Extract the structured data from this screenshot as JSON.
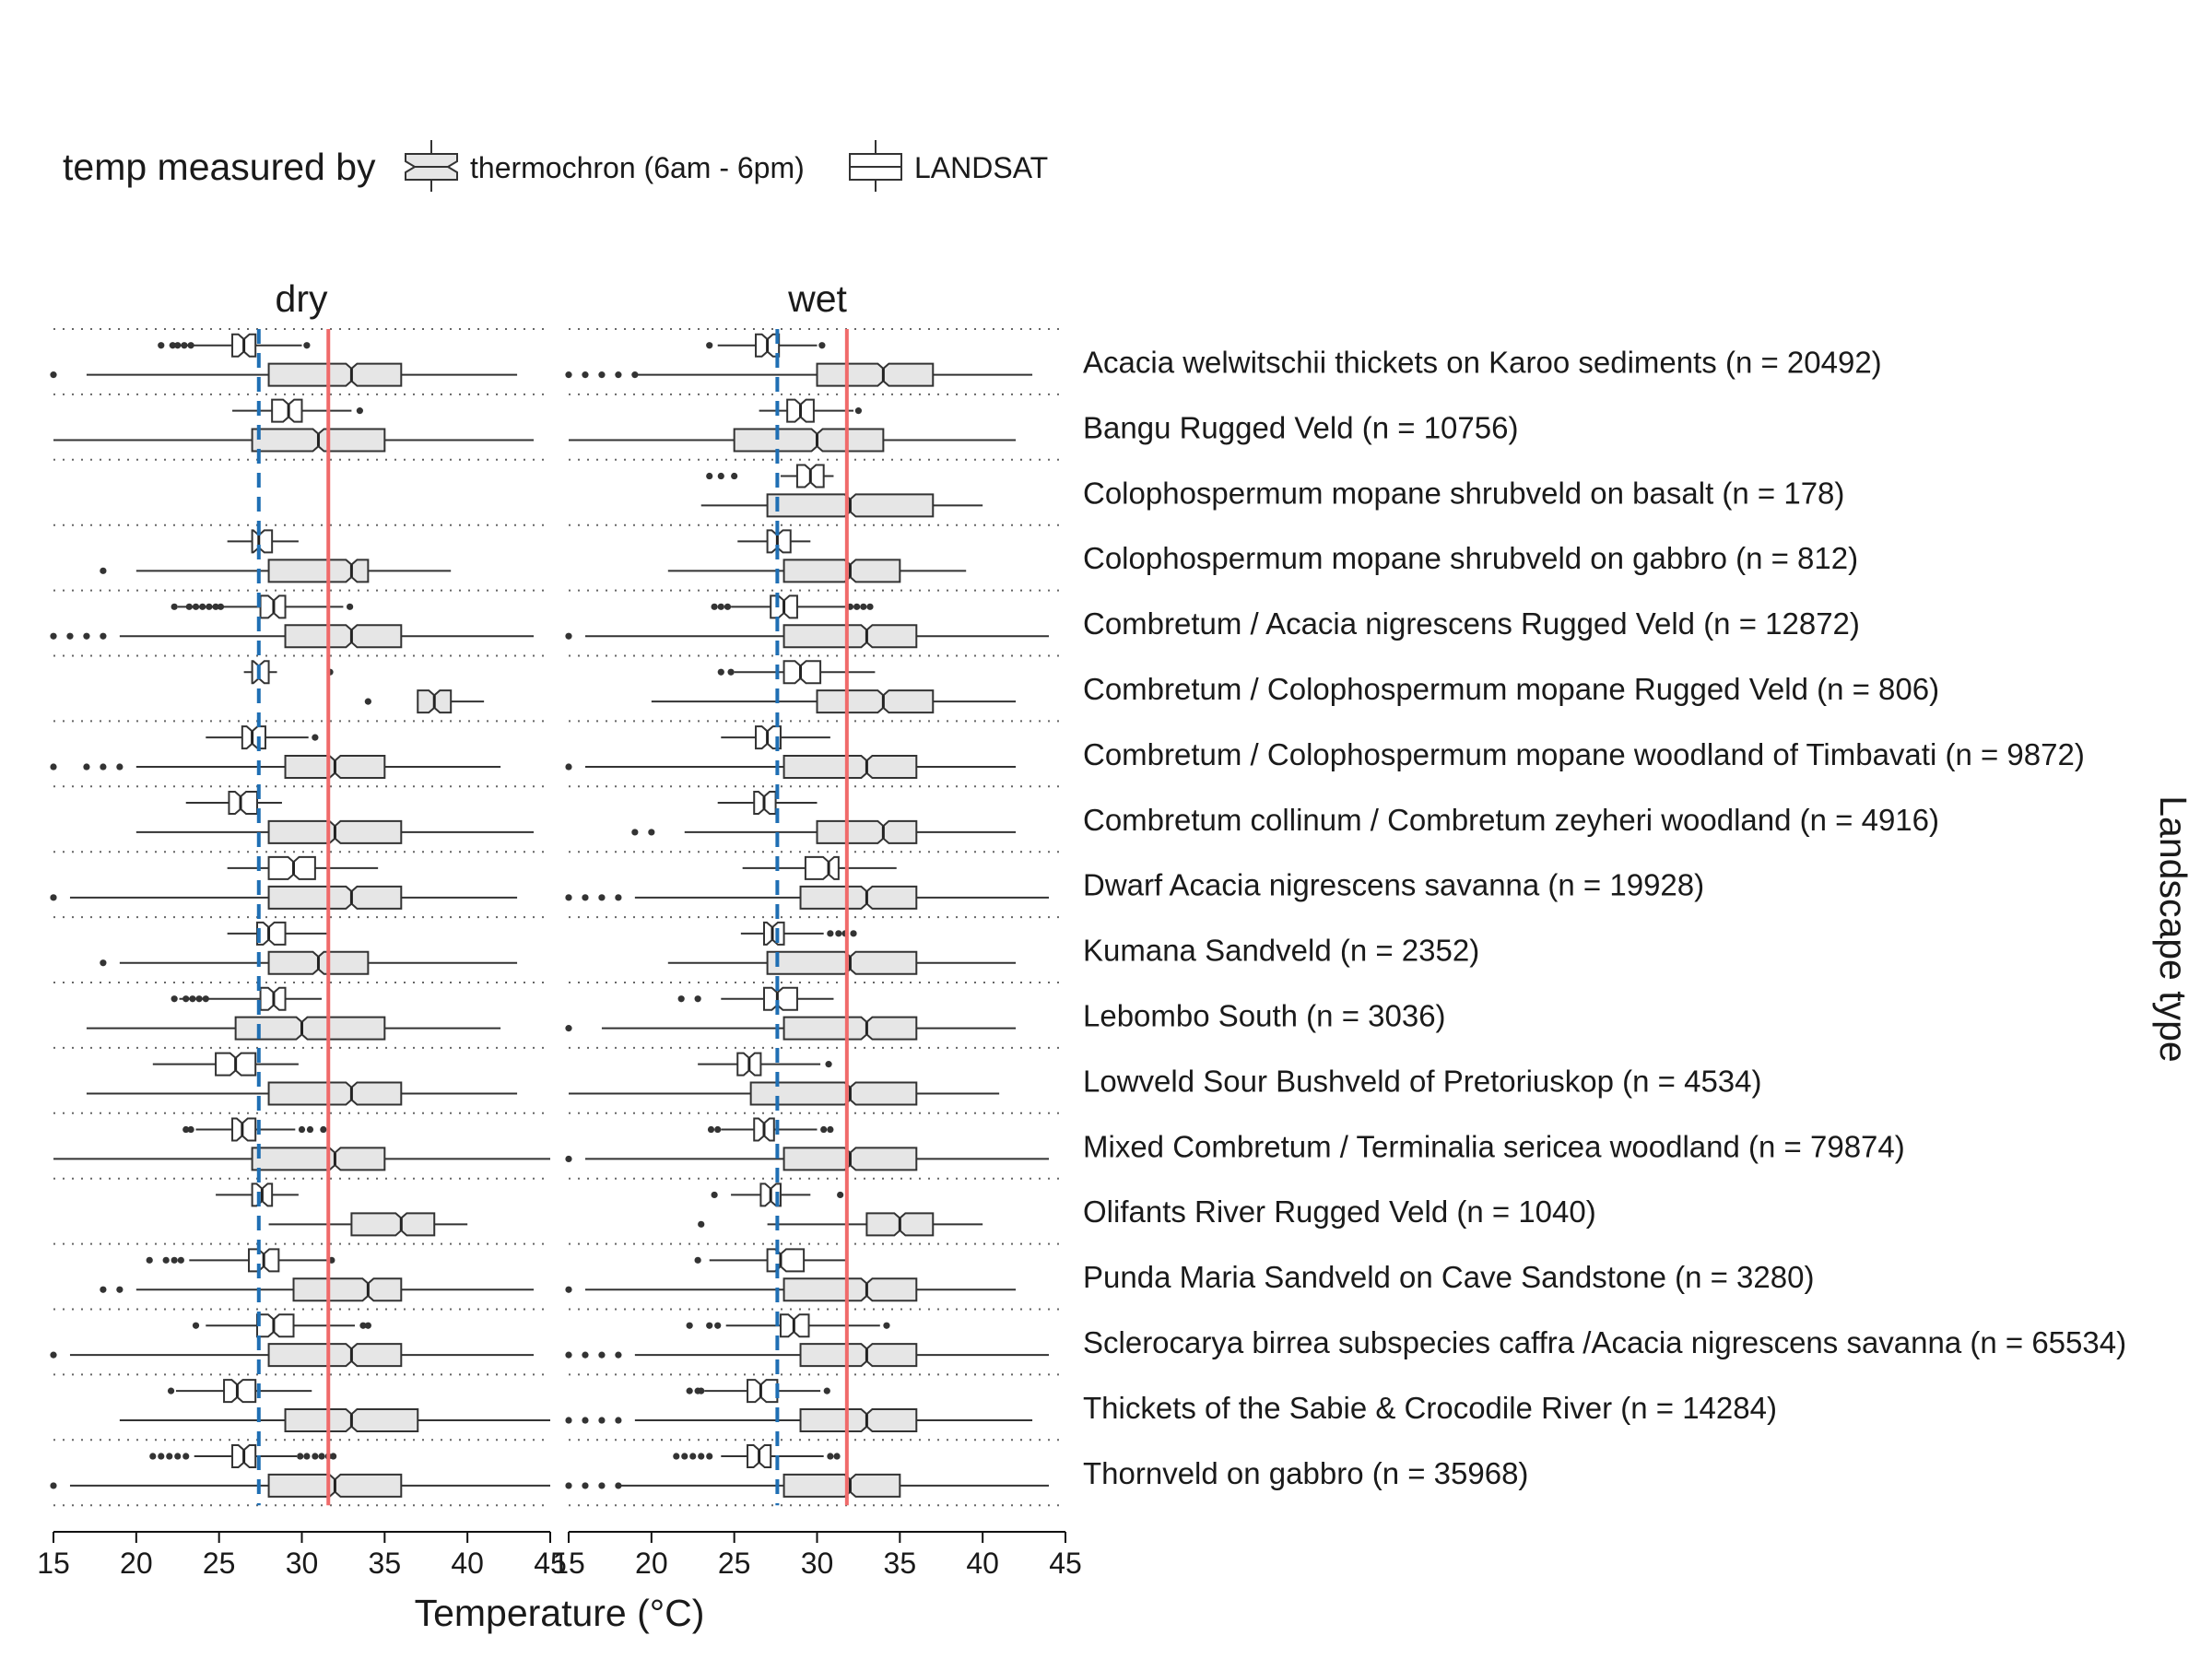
{
  "chart_data": {
    "type": "boxplot",
    "orientation": "horizontal",
    "notched": true,
    "legend": {
      "title": "temp measured by",
      "placement": "top-left",
      "items": [
        {
          "name": "thermochron (6am - 6pm)",
          "fill": "#e6e6e6"
        },
        {
          "name": "LANDSAT",
          "fill": "#ffffff"
        }
      ]
    },
    "facets": [
      "dry",
      "wet"
    ],
    "xlabel": "Temperature (°C)",
    "ylabel": "Landscape type",
    "xlim": [
      15,
      45
    ],
    "xticks": [
      15,
      20,
      25,
      30,
      35,
      40,
      45
    ],
    "reference_lines": {
      "dry": {
        "dashed_blue": 27.4,
        "solid_red": 31.6
      },
      "wet": {
        "dashed_blue": 27.6,
        "solid_red": 31.8
      }
    },
    "colors": {
      "dashed_line": "#1f6fb4",
      "solid_line": "#f06a6a",
      "thermochron_fill": "#e6e6e6",
      "landsat_fill": "#ffffff",
      "box_stroke": "#333333"
    },
    "categories": [
      "Acacia welwitschii thickets on Karoo sediments (n = 20492)",
      "Bangu Rugged Veld (n = 10756)",
      "Colophospermum mopane shrubveld on basalt (n = 178)",
      "Colophospermum mopane shrubveld on gabbro (n = 812)",
      "Combretum / Acacia nigrescens Rugged Veld (n = 12872)",
      "Combretum / Colophospermum mopane Rugged Veld (n = 806)",
      "Combretum / Colophospermum mopane woodland of Timbavati (n = 9872)",
      "Combretum collinum / Combretum zeyheri woodland (n = 4916)",
      "Dwarf Acacia nigrescens savanna (n = 19928)",
      "Kumana Sandveld (n = 2352)",
      "Lebombo South (n = 3036)",
      "Lowveld Sour Bushveld of Pretoriuskop (n = 4534)",
      "Mixed Combretum / Terminalia sericea woodland (n = 79874)",
      "Olifants River Rugged Veld (n = 1040)",
      "Punda Maria Sandveld on Cave Sandstone (n = 3280)",
      "Sclerocarya birrea subspecies caffra /Acacia nigrescens savanna (n = 65534)",
      "Thickets of the Sabie & Crocodile River (n = 14284)",
      "Thornveld on gabbro (n = 35968)"
    ],
    "series": [
      {
        "name": "dry",
        "landsat": [
          {
            "min": 22,
            "q1": 25.8,
            "median": 26.5,
            "q3": 27.2,
            "max": 30,
            "out": [
              21.5,
              22.2,
              22.5,
              22.9,
              23.3,
              30.3
            ]
          },
          {
            "min": 25.8,
            "q1": 28.2,
            "median": 29.2,
            "q3": 30,
            "max": 33,
            "out": [
              33.5
            ]
          },
          null,
          {
            "min": 25.5,
            "q1": 27,
            "median": 27.4,
            "q3": 28.2,
            "max": 29.8,
            "out": []
          },
          {
            "min": 22.5,
            "q1": 27.5,
            "median": 28.3,
            "q3": 29,
            "max": 32.5,
            "out": [
              22.3,
              23.2,
              23.6,
              24,
              24.4,
              24.8,
              25.1,
              32.9
            ]
          },
          {
            "min": 26.5,
            "q1": 27,
            "median": 27.4,
            "q3": 28,
            "max": 28.5,
            "out": [
              31.7
            ]
          },
          {
            "min": 24.2,
            "q1": 26.4,
            "median": 27,
            "q3": 27.8,
            "max": 30.4,
            "out": [
              30.8
            ]
          },
          {
            "min": 23,
            "q1": 25.6,
            "median": 26.3,
            "q3": 27.3,
            "max": 28.8,
            "out": []
          },
          {
            "min": 25.5,
            "q1": 28,
            "median": 29.5,
            "q3": 30.8,
            "max": 34.6,
            "out": []
          },
          {
            "min": 25.5,
            "q1": 27.3,
            "median": 28,
            "q3": 29,
            "max": 31.5,
            "out": []
          },
          {
            "min": 22.6,
            "q1": 27.5,
            "median": 28.3,
            "q3": 29,
            "max": 31.2,
            "out": [
              22.3,
              23,
              23.4,
              23.8,
              24.2
            ]
          },
          {
            "min": 21,
            "q1": 24.8,
            "median": 26,
            "q3": 27.2,
            "max": 29.8,
            "out": []
          },
          {
            "min": 23.6,
            "q1": 25.8,
            "median": 26.4,
            "q3": 27.2,
            "max": 29.6,
            "out": [
              23,
              23.3,
              30,
              30.5,
              31.3
            ]
          },
          {
            "min": 24.8,
            "q1": 27,
            "median": 27.6,
            "q3": 28.2,
            "max": 29.8,
            "out": []
          },
          {
            "min": 23.2,
            "q1": 26.8,
            "median": 27.7,
            "q3": 28.6,
            "max": 31.5,
            "out": [
              20.8,
              21.8,
              22.3,
              22.7,
              31.8
            ]
          },
          {
            "min": 24.2,
            "q1": 27.3,
            "median": 28.3,
            "q3": 29.5,
            "max": 33.2,
            "out": [
              23.6,
              33.7,
              34
            ]
          },
          {
            "min": 22.4,
            "q1": 25.3,
            "median": 26.1,
            "q3": 27.2,
            "max": 30.6,
            "out": [
              22.1
            ]
          },
          {
            "min": 23.5,
            "q1": 25.8,
            "median": 26.5,
            "q3": 27.2,
            "max": 29.7,
            "out": [
              21,
              21.5,
              22,
              22.5,
              23,
              29.9,
              30.3,
              30.8,
              31.2,
              31.6,
              31.9
            ]
          }
        ],
        "thermochron": [
          {
            "min": 17,
            "q1": 28,
            "median": 33,
            "q3": 36,
            "max": 43,
            "out": [
              15
            ]
          },
          {
            "min": 15,
            "q1": 27,
            "median": 31,
            "q3": 35,
            "max": 44,
            "out": []
          },
          null,
          {
            "min": 20,
            "q1": 28,
            "median": 33,
            "q3": 34,
            "max": 39,
            "out": [
              18
            ]
          },
          {
            "min": 19,
            "q1": 29,
            "median": 33,
            "q3": 36,
            "max": 44,
            "out": [
              15,
              16,
              17,
              18
            ]
          },
          {
            "min": 37,
            "q1": 37,
            "median": 38,
            "q3": 39,
            "max": 41,
            "out": [
              34
            ]
          },
          {
            "min": 20,
            "q1": 29,
            "median": 32,
            "q3": 35,
            "max": 42,
            "out": [
              15,
              17,
              18,
              19
            ]
          },
          {
            "min": 20,
            "q1": 28,
            "median": 32,
            "q3": 36,
            "max": 44,
            "out": []
          },
          {
            "min": 16,
            "q1": 28,
            "median": 33,
            "q3": 36,
            "max": 43,
            "out": [
              15
            ]
          },
          {
            "min": 19,
            "q1": 28,
            "median": 31,
            "q3": 34,
            "max": 43,
            "out": [
              18
            ]
          },
          {
            "min": 17,
            "q1": 26,
            "median": 30,
            "q3": 35,
            "max": 42,
            "out": []
          },
          {
            "min": 17,
            "q1": 28,
            "median": 33,
            "q3": 36,
            "max": 43,
            "out": []
          },
          {
            "min": 15,
            "q1": 27,
            "median": 32,
            "q3": 35,
            "max": 45,
            "out": []
          },
          {
            "min": 28,
            "q1": 33,
            "median": 36,
            "q3": 38,
            "max": 40,
            "out": []
          },
          {
            "min": 20,
            "q1": 29.5,
            "median": 34,
            "q3": 36,
            "max": 44,
            "out": [
              18,
              19
            ]
          },
          {
            "min": 16,
            "q1": 28,
            "median": 33,
            "q3": 36,
            "max": 44,
            "out": [
              15
            ]
          },
          {
            "min": 19,
            "q1": 29,
            "median": 33,
            "q3": 37,
            "max": 45,
            "out": []
          },
          {
            "min": 16,
            "q1": 28,
            "median": 32,
            "q3": 36,
            "max": 45,
            "out": [
              15
            ]
          }
        ]
      },
      {
        "name": "wet",
        "landsat": [
          {
            "min": 24,
            "q1": 26.3,
            "median": 27,
            "q3": 27.7,
            "max": 30,
            "out": [
              23.5,
              30.3
            ]
          },
          {
            "min": 26.5,
            "q1": 28.2,
            "median": 29,
            "q3": 29.8,
            "max": 32.2,
            "out": [
              32.5
            ]
          },
          {
            "min": 27.8,
            "q1": 28.8,
            "median": 29.6,
            "q3": 30.4,
            "max": 31,
            "out": [
              23.5,
              24.2,
              25
            ]
          },
          {
            "min": 25.2,
            "q1": 27,
            "median": 27.6,
            "q3": 28.4,
            "max": 29.6,
            "out": []
          },
          {
            "min": 24.8,
            "q1": 27.2,
            "median": 28,
            "q3": 28.8,
            "max": 31.8,
            "out": [
              23.8,
              24.2,
              24.6,
              32,
              32.4,
              32.8,
              33.2
            ]
          },
          {
            "min": 25,
            "q1": 28,
            "median": 29,
            "q3": 30.2,
            "max": 33.5,
            "out": [
              24.2,
              24.8
            ]
          },
          {
            "min": 24.2,
            "q1": 26.3,
            "median": 27,
            "q3": 27.8,
            "max": 30.8,
            "out": []
          },
          {
            "min": 24,
            "q1": 26.2,
            "median": 26.8,
            "q3": 27.5,
            "max": 30,
            "out": []
          },
          {
            "min": 25.5,
            "q1": 29.3,
            "median": 30.7,
            "q3": 31.3,
            "max": 34.8,
            "out": []
          },
          {
            "min": 25.4,
            "q1": 26.8,
            "median": 27.3,
            "q3": 28,
            "max": 30.4,
            "out": [
              30.8,
              31.3,
              31.7,
              32.2
            ]
          },
          {
            "min": 24.2,
            "q1": 26.8,
            "median": 27.6,
            "q3": 28.8,
            "max": 31,
            "out": [
              21.8,
              22.8
            ]
          },
          {
            "min": 22.8,
            "q1": 25.2,
            "median": 25.9,
            "q3": 26.6,
            "max": 30.2,
            "out": [
              30.7
            ]
          },
          {
            "min": 24.2,
            "q1": 26.2,
            "median": 26.8,
            "q3": 27.4,
            "max": 30,
            "out": [
              23.6,
              24,
              30.4,
              30.8
            ]
          },
          {
            "min": 24.8,
            "q1": 26.6,
            "median": 27.2,
            "q3": 27.8,
            "max": 29.6,
            "out": [
              23.8,
              31.4
            ]
          },
          {
            "min": 23.5,
            "q1": 27,
            "median": 27.8,
            "q3": 29.2,
            "max": 31.8,
            "out": [
              22.8
            ]
          },
          {
            "min": 24.5,
            "q1": 27.8,
            "median": 28.6,
            "q3": 29.5,
            "max": 33.8,
            "out": [
              22.3,
              23.5,
              24,
              34.2
            ]
          },
          {
            "min": 23.2,
            "q1": 25.8,
            "median": 26.6,
            "q3": 27.6,
            "max": 30.2,
            "out": [
              22.3,
              22.8,
              23,
              30.6
            ]
          },
          {
            "min": 24.2,
            "q1": 25.8,
            "median": 26.5,
            "q3": 27.2,
            "max": 30.4,
            "out": [
              21.5,
              22,
              22.5,
              23,
              23.5,
              30.8,
              31.2
            ]
          }
        ],
        "thermochron": [
          {
            "min": 19,
            "q1": 30,
            "median": 34,
            "q3": 37,
            "max": 43,
            "out": [
              15,
              16,
              17,
              18,
              19
            ]
          },
          {
            "min": 15,
            "q1": 25,
            "median": 30,
            "q3": 34,
            "max": 42,
            "out": []
          },
          {
            "min": 23,
            "q1": 27,
            "median": 32,
            "q3": 37,
            "max": 40,
            "out": []
          },
          {
            "min": 21,
            "q1": 28,
            "median": 32,
            "q3": 35,
            "max": 39,
            "out": []
          },
          {
            "min": 16,
            "q1": 28,
            "median": 33,
            "q3": 36,
            "max": 44,
            "out": [
              15
            ]
          },
          {
            "min": 20,
            "q1": 30,
            "median": 34,
            "q3": 37,
            "max": 42,
            "out": []
          },
          {
            "min": 16,
            "q1": 28,
            "median": 33,
            "q3": 36,
            "max": 42,
            "out": [
              15
            ]
          },
          {
            "min": 22,
            "q1": 30,
            "median": 34,
            "q3": 36,
            "max": 42,
            "out": [
              19,
              20
            ]
          },
          {
            "min": 19,
            "q1": 29,
            "median": 33,
            "q3": 36,
            "max": 44,
            "out": [
              15,
              16,
              17,
              18
            ]
          },
          {
            "min": 21,
            "q1": 27,
            "median": 32,
            "q3": 36,
            "max": 42,
            "out": []
          },
          {
            "min": 17,
            "q1": 28,
            "median": 33,
            "q3": 36,
            "max": 42,
            "out": [
              15
            ]
          },
          {
            "min": 15,
            "q1": 26,
            "median": 32,
            "q3": 36,
            "max": 41,
            "out": []
          },
          {
            "min": 16,
            "q1": 28,
            "median": 32,
            "q3": 36,
            "max": 44,
            "out": [
              15
            ]
          },
          {
            "min": 27,
            "q1": 33,
            "median": 35,
            "q3": 37,
            "max": 40,
            "out": [
              23
            ]
          },
          {
            "min": 16,
            "q1": 28,
            "median": 33,
            "q3": 36,
            "max": 42,
            "out": [
              15
            ]
          },
          {
            "min": 19,
            "q1": 29,
            "median": 33,
            "q3": 36,
            "max": 44,
            "out": [
              15,
              16,
              17,
              18
            ]
          },
          {
            "min": 19,
            "q1": 29,
            "median": 33,
            "q3": 36,
            "max": 43,
            "out": [
              15,
              16,
              17,
              18
            ]
          },
          {
            "min": 18,
            "q1": 28,
            "median": 32,
            "q3": 35,
            "max": 44,
            "out": [
              15,
              16,
              17,
              18
            ]
          }
        ]
      }
    ]
  }
}
